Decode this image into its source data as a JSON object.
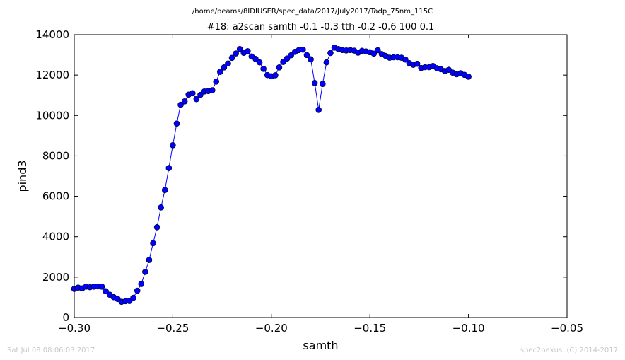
{
  "chart_data": {
    "type": "line",
    "suptitle": "/home/beams/8IDIUSER/spec_data/2017/July2017/Tadp_75nm_115C",
    "title": "#18: a2scan  samth -0.1 -0.3  tth -0.2 -0.6  100 0.1",
    "xlabel": "samth",
    "ylabel": "pind3",
    "xlim": [
      -0.3,
      -0.05
    ],
    "ylim": [
      0,
      14000
    ],
    "x_ticks": [
      -0.3,
      -0.25,
      -0.2,
      -0.15,
      -0.1,
      -0.05
    ],
    "x_tick_labels": [
      "−0.30",
      "−0.25",
      "−0.20",
      "−0.15",
      "−0.10",
      "−0.05"
    ],
    "y_ticks": [
      0,
      2000,
      4000,
      6000,
      8000,
      10000,
      12000,
      14000
    ],
    "y_tick_labels": [
      "0",
      "2000",
      "4000",
      "6000",
      "8000",
      "10000",
      "12000",
      "14000"
    ],
    "grid": false,
    "series": [
      {
        "color": "#0000ff",
        "marker": "circle",
        "x": [
          -0.3,
          -0.298,
          -0.296,
          -0.294,
          -0.292,
          -0.29,
          -0.288,
          -0.286,
          -0.284,
          -0.282,
          -0.28,
          -0.278,
          -0.276,
          -0.274,
          -0.272,
          -0.27,
          -0.268,
          -0.266,
          -0.264,
          -0.262,
          -0.26,
          -0.258,
          -0.256,
          -0.254,
          -0.252,
          -0.25,
          -0.248,
          -0.246,
          -0.244,
          -0.242,
          -0.24,
          -0.238,
          -0.236,
          -0.234,
          -0.232,
          -0.23,
          -0.228,
          -0.226,
          -0.224,
          -0.222,
          -0.22,
          -0.218,
          -0.216,
          -0.214,
          -0.212,
          -0.21,
          -0.208,
          -0.206,
          -0.204,
          -0.202,
          -0.2,
          -0.198,
          -0.196,
          -0.194,
          -0.192,
          -0.19,
          -0.188,
          -0.186,
          -0.184,
          -0.182,
          -0.18,
          -0.178,
          -0.176,
          -0.174,
          -0.172,
          -0.17,
          -0.168,
          -0.166,
          -0.164,
          -0.162,
          -0.16,
          -0.158,
          -0.156,
          -0.154,
          -0.152,
          -0.15,
          -0.148,
          -0.146,
          -0.144,
          -0.142,
          -0.14,
          -0.138,
          -0.136,
          -0.134,
          -0.132,
          -0.13,
          -0.128,
          -0.126,
          -0.124,
          -0.122,
          -0.12,
          -0.118,
          -0.116,
          -0.114,
          -0.112,
          -0.11,
          -0.108,
          -0.106,
          -0.104,
          -0.102,
          -0.1
        ],
        "values": [
          1420,
          1480,
          1440,
          1530,
          1500,
          1530,
          1540,
          1530,
          1300,
          1130,
          1010,
          920,
          780,
          810,
          820,
          980,
          1330,
          1660,
          2260,
          2850,
          3680,
          4470,
          5450,
          6310,
          7400,
          8530,
          9600,
          10530,
          10700,
          11030,
          11100,
          10810,
          11020,
          11190,
          11210,
          11250,
          11680,
          12160,
          12380,
          12570,
          12850,
          13070,
          13290,
          13100,
          13180,
          12920,
          12800,
          12630,
          12310,
          12000,
          11940,
          11990,
          12380,
          12650,
          12820,
          12980,
          13150,
          13240,
          13260,
          12990,
          12780,
          11610,
          10280,
          11560,
          12630,
          13090,
          13360,
          13290,
          13240,
          13220,
          13240,
          13210,
          13110,
          13200,
          13170,
          13130,
          13060,
          13230,
          13040,
          12950,
          12860,
          12880,
          12880,
          12860,
          12770,
          12590,
          12510,
          12560,
          12350,
          12390,
          12390,
          12450,
          12340,
          12290,
          12200,
          12260,
          12120,
          12040,
          12090,
          12010,
          11920
        ]
      }
    ]
  },
  "footer": {
    "timestamp": "Sat Jul 08 08:06:03 2017",
    "credit": "spec2nexus, (C) 2014-2017"
  }
}
